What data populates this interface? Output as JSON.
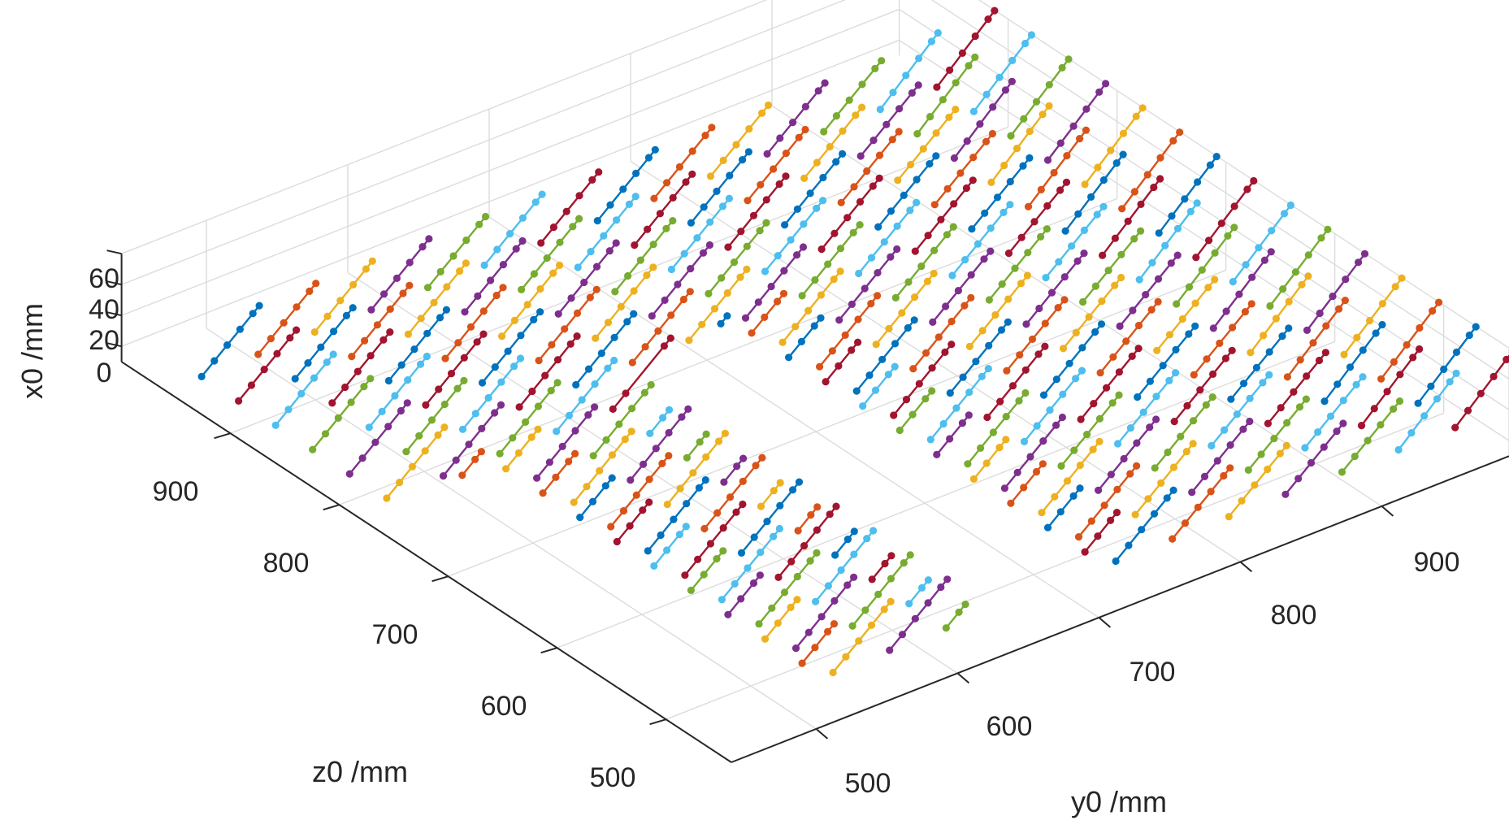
{
  "chart_data": {
    "type": "line3d",
    "title": "",
    "xlabel": "y0 /mm",
    "ylabel": "z0 /mm",
    "zlabel": "x0 /mm",
    "y_ticks": [
      "500",
      "600",
      "700",
      "800",
      "900"
    ],
    "z_ticks": [
      "500",
      "600",
      "700",
      "800",
      "900"
    ],
    "x_ticks": [
      "0",
      "20",
      "40",
      "60"
    ],
    "yrange": [
      440,
      990
    ],
    "zrange": [
      440,
      1000
    ],
    "xrange": [
      -10,
      60
    ],
    "grid": true,
    "colors": [
      "#0072bd",
      "#d95319",
      "#edb120",
      "#7e2f8e",
      "#77ac30",
      "#4dbeee",
      "#a2142f"
    ],
    "series_count": 98,
    "points_per_series": 10,
    "marker": "dot",
    "note_missing": "trajectories are gapped in the central band of y0 and lower left region"
  }
}
